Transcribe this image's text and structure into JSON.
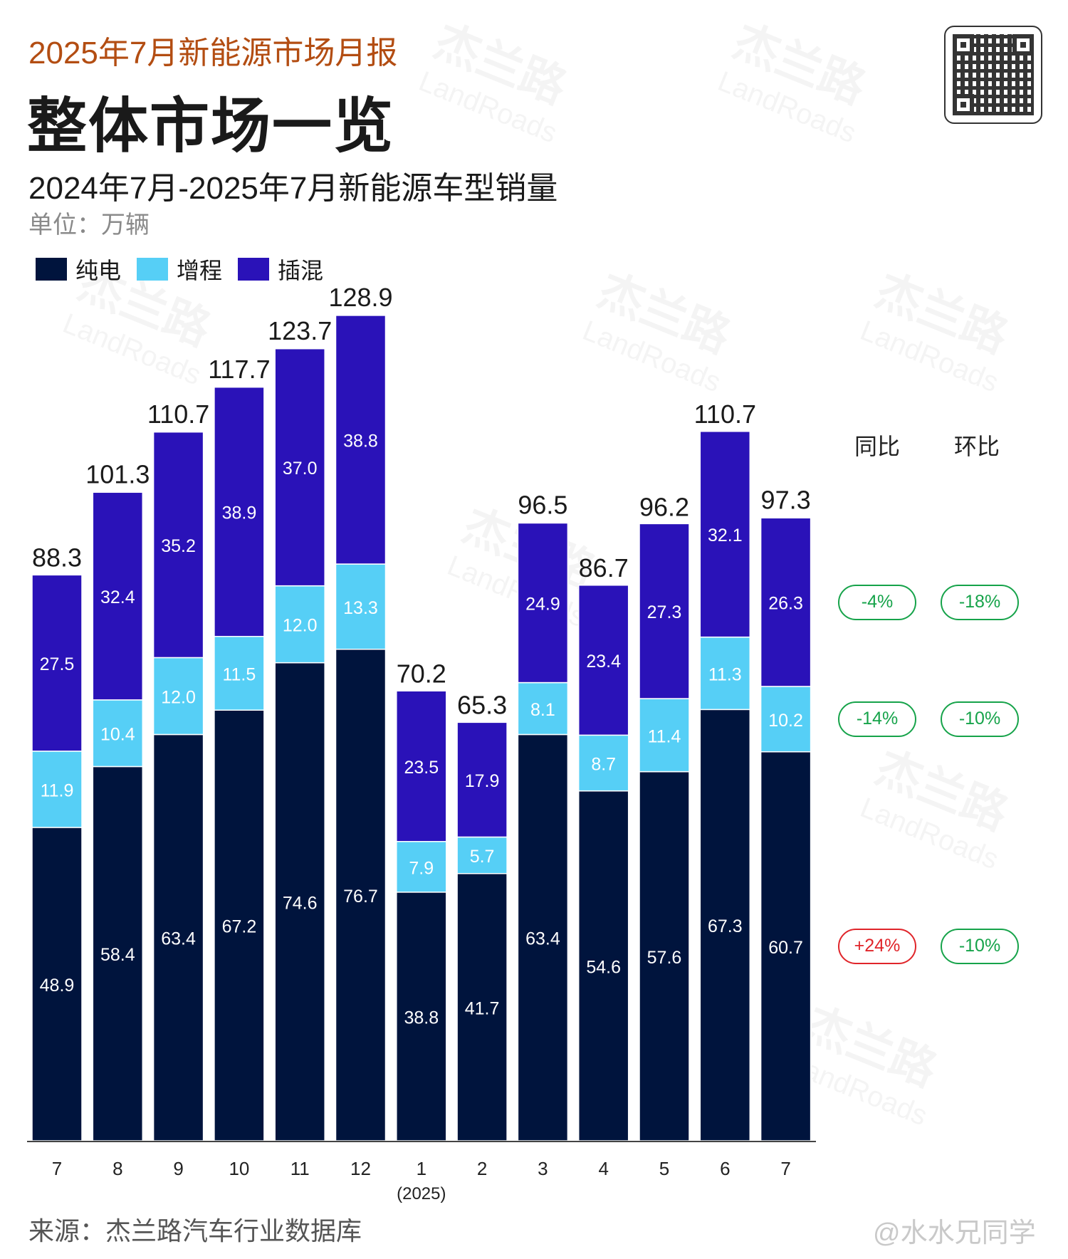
{
  "header": {
    "subtitle": "2025年7月新能源市场月报",
    "title": "整体市场一览"
  },
  "chart_title": "2024年7月-2025年7月新能源车型销量",
  "unit": "单位：万辆",
  "legend": [
    {
      "name": "纯电",
      "color": "#00143d"
    },
    {
      "name": "增程",
      "color": "#56cff6"
    },
    {
      "name": "插混",
      "color": "#2a12b8"
    }
  ],
  "comparison": {
    "headers": [
      "同比",
      "环比"
    ],
    "rows": [
      {
        "series": "插混",
        "yoy": "-4%",
        "yoy_sign": "neg",
        "mom": "-18%",
        "mom_sign": "neg"
      },
      {
        "series": "增程",
        "yoy": "-14%",
        "yoy_sign": "neg",
        "mom": "-10%",
        "mom_sign": "neg"
      },
      {
        "series": "纯电",
        "yoy": "+24%",
        "yoy_sign": "pos",
        "mom": "-10%",
        "mom_sign": "neg"
      }
    ]
  },
  "chart_data": {
    "type": "bar",
    "stacked": true,
    "categories": [
      "7",
      "8",
      "9",
      "10",
      "11",
      "12",
      "1",
      "2",
      "3",
      "4",
      "5",
      "6",
      "7"
    ],
    "category_sublabels": [
      "",
      "",
      "",
      "",
      "",
      "",
      "(2025)",
      "",
      "",
      "",
      "",
      "",
      ""
    ],
    "series": [
      {
        "name": "纯电",
        "color": "#00143d",
        "values": [
          48.9,
          58.4,
          63.4,
          67.2,
          74.6,
          76.7,
          38.8,
          41.7,
          63.4,
          54.6,
          57.6,
          67.3,
          60.7
        ]
      },
      {
        "name": "增程",
        "color": "#56cff6",
        "values": [
          11.9,
          10.4,
          12.0,
          11.5,
          12.0,
          13.3,
          7.9,
          5.7,
          8.1,
          8.7,
          11.4,
          11.3,
          10.2
        ]
      },
      {
        "name": "插混",
        "color": "#2a12b8",
        "values": [
          27.5,
          32.4,
          35.2,
          38.9,
          37.0,
          38.8,
          23.5,
          17.9,
          24.9,
          23.4,
          27.3,
          32.1,
          26.3
        ]
      }
    ],
    "totals": [
      88.3,
      101.3,
      110.7,
      117.7,
      123.7,
      128.9,
      70.2,
      65.3,
      96.5,
      86.7,
      96.2,
      110.7,
      97.3
    ],
    "ylim": [
      0,
      128.9
    ],
    "grid": false,
    "legend_position": "top-left"
  },
  "footer": {
    "source": "来源：杰兰路汽车行业数据库",
    "weibo": "@水水兄同学"
  },
  "watermark": {
    "text": "杰兰路",
    "sub": "LandRoads"
  }
}
